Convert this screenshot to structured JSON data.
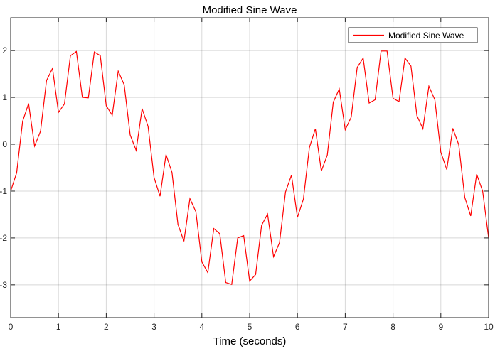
{
  "chart_data": {
    "type": "line",
    "title": "Modified Sine Wave",
    "xlabel": "Time (seconds)",
    "ylabel": "",
    "xlim": [
      0,
      10
    ],
    "ylim": [
      -3.7,
      2.7
    ],
    "xticks": [
      0,
      1,
      2,
      3,
      4,
      5,
      6,
      7,
      8,
      9,
      10
    ],
    "yticks": [
      -3,
      -2,
      -1,
      0,
      1,
      2
    ],
    "grid": true,
    "legend_position": "top-right",
    "series": [
      {
        "name": "Modified Sine Wave",
        "color": "#ff0000",
        "x": [
          0,
          0.125,
          0.25,
          0.375,
          0.5,
          0.625,
          0.75,
          0.875,
          1,
          1.125,
          1.25,
          1.375,
          1.5,
          1.625,
          1.75,
          1.875,
          2,
          2.125,
          2.25,
          2.375,
          2.5,
          2.625,
          2.75,
          2.875,
          3,
          3.125,
          3.25,
          3.375,
          3.5,
          3.625,
          3.75,
          3.875,
          4,
          4.125,
          4.25,
          4.375,
          4.5,
          4.625,
          4.75,
          4.875,
          5,
          5.125,
          5.25,
          5.375,
          5.5,
          5.625,
          5.75,
          5.875,
          6,
          6.125,
          6.25,
          6.375,
          6.5,
          6.625,
          6.75,
          6.875,
          7,
          7.125,
          7.25,
          7.375,
          7.5,
          7.625,
          7.75,
          7.875,
          8,
          8.125,
          8.25,
          8.375,
          8.5,
          8.625,
          8.75,
          8.875,
          9,
          9.125,
          9.25,
          9.375,
          9.5,
          9.625,
          9.75,
          9.875,
          10
        ],
        "y": [
          -1.0,
          -0.61,
          0.49,
          0.87,
          -0.04,
          0.28,
          1.36,
          1.62,
          0.68,
          0.86,
          1.89,
          1.98,
          1.0,
          0.99,
          1.97,
          1.89,
          0.82,
          0.62,
          1.56,
          1.27,
          0.2,
          -0.13,
          0.76,
          0.38,
          -0.71,
          -1.11,
          -0.22,
          -0.6,
          -1.71,
          -2.07,
          -1.16,
          -1.44,
          -2.51,
          -2.74,
          -1.8,
          -1.91,
          -2.95,
          -2.99,
          -2.0,
          -1.95,
          -2.92,
          -2.78,
          -1.73,
          -1.49,
          -2.4,
          -2.1,
          -1.02,
          -0.66,
          -1.56,
          -1.17,
          -0.07,
          0.33,
          -0.57,
          -0.23,
          0.9,
          1.18,
          0.31,
          0.58,
          1.64,
          1.84,
          0.88,
          0.95,
          1.99,
          1.99,
          0.98,
          0.91,
          1.84,
          1.67,
          0.61,
          0.33,
          1.24,
          0.95,
          -0.17,
          -0.54,
          0.34,
          -0.01,
          -1.13,
          -1.53,
          -0.64,
          -1.0,
          -2.0
        ]
      }
    ]
  }
}
